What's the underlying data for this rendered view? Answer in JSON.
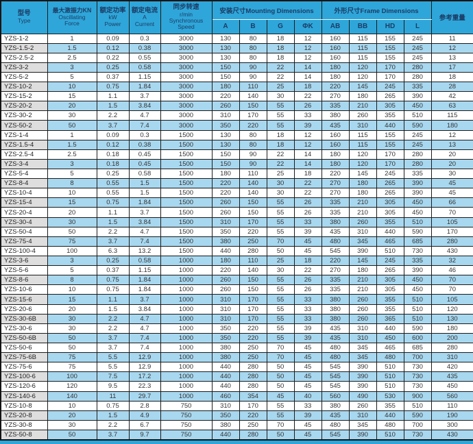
{
  "colors": {
    "header_bg": "#2FA6D9",
    "row_shade_blue": "#A8D8F0",
    "row_shade_gray": "#DEDEDE",
    "border": "#1a1a1a",
    "header_text": "#1B3D66",
    "body_text": "#333333",
    "bottom_strip": "#2FA6D9"
  },
  "table": {
    "header": {
      "type_zh": "型号",
      "type_en": "Type",
      "force_zh": "最大激振力KN",
      "force_en1": "Oscillating",
      "force_en2": "Force",
      "power_zh": "额定功率",
      "power_en1": "kW",
      "power_en2": "Power",
      "current_zh": "额定电流",
      "current_en1": "A",
      "current_en2": "Current",
      "speed_zh": "同步转速",
      "speed_en1": "r/min",
      "speed_en2": "Synchronous",
      "speed_en3": "Speed",
      "mounting_group": "安装尺寸Mounting Dimensions",
      "frame_group": "外形尺寸Frame Dimensions",
      "weight": "参考重量",
      "sub": [
        "A",
        "B",
        "G",
        "ΦK",
        "AB",
        "BB",
        "HD",
        "L"
      ]
    },
    "rows": [
      [
        "YZS-1-2",
        "1",
        "0.09",
        "0.3",
        "3000",
        "130",
        "80",
        "18",
        "12",
        "160",
        "115",
        "155",
        "245",
        "11"
      ],
      [
        "YZS-1.5-2",
        "1.5",
        "0.12",
        "0.38",
        "3000",
        "130",
        "80",
        "18",
        "12",
        "160",
        "115",
        "155",
        "245",
        "12"
      ],
      [
        "YZS-2.5-2",
        "2.5",
        "0.22",
        "0.55",
        "3000",
        "130",
        "80",
        "18",
        "12",
        "160",
        "115",
        "155",
        "245",
        "13"
      ],
      [
        "YZS-3-2",
        "3",
        "0.25",
        "0.58",
        "3000",
        "150",
        "90",
        "22",
        "14",
        "180",
        "120",
        "170",
        "280",
        "17"
      ],
      [
        "YZS-5-2",
        "5",
        "0.37",
        "1.15",
        "3000",
        "150",
        "90",
        "22",
        "14",
        "180",
        "120",
        "170",
        "280",
        "18"
      ],
      [
        "YZS-10-2",
        "10",
        "0.75",
        "1.84",
        "3000",
        "180",
        "110",
        "25",
        "18",
        "220",
        "145",
        "245",
        "335",
        "28"
      ],
      [
        "YZS-15-2",
        "15",
        "1.1",
        "3.7",
        "3000",
        "220",
        "140",
        "30",
        "22",
        "270",
        "180",
        "265",
        "390",
        "42"
      ],
      [
        "YZS-20-2",
        "20",
        "1.5",
        "3.84",
        "3000",
        "260",
        "150",
        "55",
        "26",
        "335",
        "210",
        "305",
        "450",
        "63"
      ],
      [
        "YZS-30-2",
        "30",
        "2.2",
        "4.7",
        "3000",
        "310",
        "170",
        "55",
        "33",
        "380",
        "260",
        "355",
        "510",
        "115"
      ],
      [
        "YZS-50-2",
        "50",
        "3.7",
        "7.4",
        "3000",
        "350",
        "220",
        "55",
        "39",
        "435",
        "310",
        "440",
        "590",
        "180"
      ],
      [
        "YZS-1-4",
        "1",
        "0.09",
        "0.3",
        "1500",
        "130",
        "80",
        "18",
        "12",
        "160",
        "115",
        "155",
        "245",
        "12"
      ],
      [
        "YZS-1.5-4",
        "1.5",
        "0.12",
        "0.38",
        "1500",
        "130",
        "80",
        "18",
        "12",
        "160",
        "115",
        "155",
        "245",
        "13"
      ],
      [
        "YZS-2.5-4",
        "2.5",
        "0.18",
        "0.45",
        "1500",
        "150",
        "90",
        "22",
        "14",
        "180",
        "120",
        "170",
        "280",
        "20"
      ],
      [
        "YZS-3-4",
        "3",
        "0.18",
        "0.45",
        "1500",
        "150",
        "90",
        "22",
        "14",
        "180",
        "120",
        "170",
        "280",
        "20"
      ],
      [
        "YZS-5-4",
        "5",
        "0.25",
        "0.58",
        "1500",
        "180",
        "110",
        "25",
        "18",
        "220",
        "145",
        "245",
        "335",
        "30"
      ],
      [
        "YZS-8-4",
        "8",
        "0.55",
        "1.5",
        "1500",
        "220",
        "140",
        "30",
        "22",
        "270",
        "180",
        "265",
        "390",
        "45"
      ],
      [
        "YZS-10-4",
        "10",
        "0.55",
        "1.5",
        "1500",
        "220",
        "140",
        "30",
        "22",
        "270",
        "180",
        "265",
        "390",
        "45"
      ],
      [
        "YZS-15-4",
        "15",
        "0.75",
        "1.84",
        "1500",
        "260",
        "150",
        "55",
        "26",
        "335",
        "210",
        "305",
        "450",
        "66"
      ],
      [
        "YZS-20-4",
        "20",
        "1.1",
        "3.7",
        "1500",
        "260",
        "150",
        "55",
        "26",
        "335",
        "210",
        "305",
        "450",
        "70"
      ],
      [
        "YZS-30-4",
        "30",
        "1.5",
        "3.84",
        "1500",
        "310",
        "170",
        "55",
        "33",
        "380",
        "260",
        "355",
        "510",
        "105"
      ],
      [
        "YZS-50-4",
        "50",
        "2.2",
        "4.7",
        "1500",
        "350",
        "220",
        "55",
        "39",
        "435",
        "310",
        "440",
        "590",
        "170"
      ],
      [
        "YZS-75-4",
        "75",
        "3.7",
        "7.4",
        "1500",
        "380",
        "250",
        "70",
        "45",
        "480",
        "345",
        "465",
        "685",
        "280"
      ],
      [
        "YZS-100-4",
        "100",
        "6.3",
        "13.2",
        "1500",
        "440",
        "280",
        "50",
        "45",
        "545",
        "390",
        "510",
        "730",
        "430"
      ],
      [
        "YZS-3-6",
        "3",
        "0.25",
        "0.58",
        "1000",
        "180",
        "110",
        "25",
        "18",
        "220",
        "145",
        "245",
        "335",
        "32"
      ],
      [
        "YZS-5-6",
        "5",
        "0.37",
        "1.15",
        "1000",
        "220",
        "140",
        "30",
        "22",
        "270",
        "180",
        "265",
        "390",
        "46"
      ],
      [
        "YZS-8-6",
        "8",
        "0.75",
        "1.84",
        "1000",
        "260",
        "150",
        "55",
        "26",
        "335",
        "210",
        "305",
        "450",
        "70"
      ],
      [
        "YZS-10-6",
        "10",
        "0.75",
        "1.84",
        "1000",
        "260",
        "150",
        "55",
        "26",
        "335",
        "210",
        "305",
        "450",
        "70"
      ],
      [
        "YZS-15-6",
        "15",
        "1.1",
        "3.7",
        "1000",
        "310",
        "170",
        "55",
        "33",
        "380",
        "260",
        "355",
        "510",
        "105"
      ],
      [
        "YZS-20-6",
        "20",
        "1.5",
        "3.84",
        "1000",
        "310",
        "170",
        "55",
        "33",
        "380",
        "260",
        "355",
        "510",
        "120"
      ],
      [
        "YZS-30-6B",
        "30",
        "2.2",
        "4.7",
        "1000",
        "310",
        "170",
        "55",
        "33",
        "380",
        "260",
        "365",
        "510",
        "130"
      ],
      [
        "YZS-30-6",
        "30",
        "2.2",
        "4.7",
        "1000",
        "350",
        "220",
        "55",
        "39",
        "435",
        "310",
        "440",
        "590",
        "180"
      ],
      [
        "YZS-50-6B",
        "50",
        "3.7",
        "7.4",
        "1000",
        "350",
        "220",
        "55",
        "39",
        "435",
        "310",
        "450",
        "600",
        "200"
      ],
      [
        "YZS-50-6",
        "50",
        "3.7",
        "7.4",
        "1000",
        "380",
        "250",
        "70",
        "45",
        "480",
        "345",
        "465",
        "685",
        "280"
      ],
      [
        "YZS-75-6B",
        "75",
        "5.5",
        "12.9",
        "1000",
        "380",
        "250",
        "70",
        "45",
        "480",
        "345",
        "480",
        "700",
        "310"
      ],
      [
        "YZS-75-6",
        "75",
        "5.5",
        "12.9",
        "1000",
        "440",
        "280",
        "50",
        "45",
        "545",
        "390",
        "510",
        "730",
        "420"
      ],
      [
        "YZS-100-6",
        "100",
        "7.5",
        "17.2",
        "1000",
        "440",
        "280",
        "50",
        "45",
        "545",
        "390",
        "510",
        "730",
        "435"
      ],
      [
        "YZS-120-6",
        "120",
        "9.5",
        "22.3",
        "1000",
        "440",
        "280",
        "50",
        "45",
        "545",
        "390",
        "510",
        "730",
        "450"
      ],
      [
        "YZS-140-6",
        "140",
        "11",
        "29.7",
        "1000",
        "460",
        "354",
        "45",
        "40",
        "560",
        "490",
        "530",
        "900",
        "560"
      ],
      [
        "YZS-10-8",
        "10",
        "0.75",
        "2.8",
        "750",
        "310",
        "170",
        "55",
        "33",
        "380",
        "260",
        "355",
        "510",
        "110"
      ],
      [
        "YZS-20-8",
        "20",
        "1.5",
        "4.9",
        "750",
        "350",
        "220",
        "55",
        "39",
        "435",
        "310",
        "440",
        "590",
        "190"
      ],
      [
        "YZS-30-8",
        "30",
        "2.2",
        "6.7",
        "750",
        "380",
        "250",
        "70",
        "45",
        "480",
        "345",
        "480",
        "700",
        "300"
      ],
      [
        "YZS-50-8",
        "50",
        "3.7",
        "9.7",
        "750",
        "440",
        "280",
        "50",
        "45",
        "545",
        "390",
        "510",
        "730",
        "430"
      ]
    ]
  }
}
